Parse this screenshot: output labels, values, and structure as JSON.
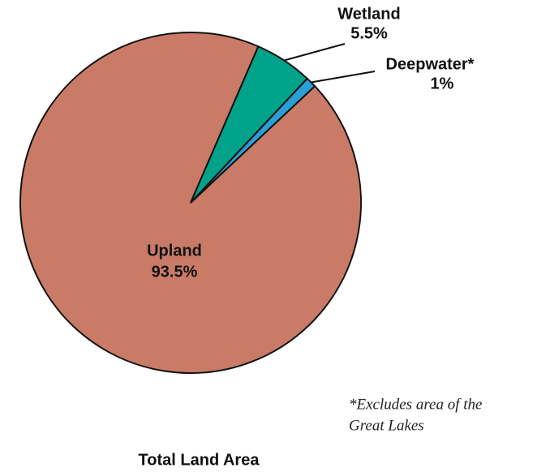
{
  "chart_data": {
    "type": "pie",
    "title": "Total Land Area",
    "categories": [
      "Upland",
      "Wetland",
      "Deepwater*"
    ],
    "values": [
      93.5,
      5.5,
      1
    ],
    "value_labels": [
      "93.5%",
      "5.5%",
      "1%"
    ],
    "colors": [
      "#c97b67",
      "#00a38a",
      "#2a9fd6"
    ],
    "note": [
      "*Excludes area of the",
      "Great Lakes"
    ]
  }
}
